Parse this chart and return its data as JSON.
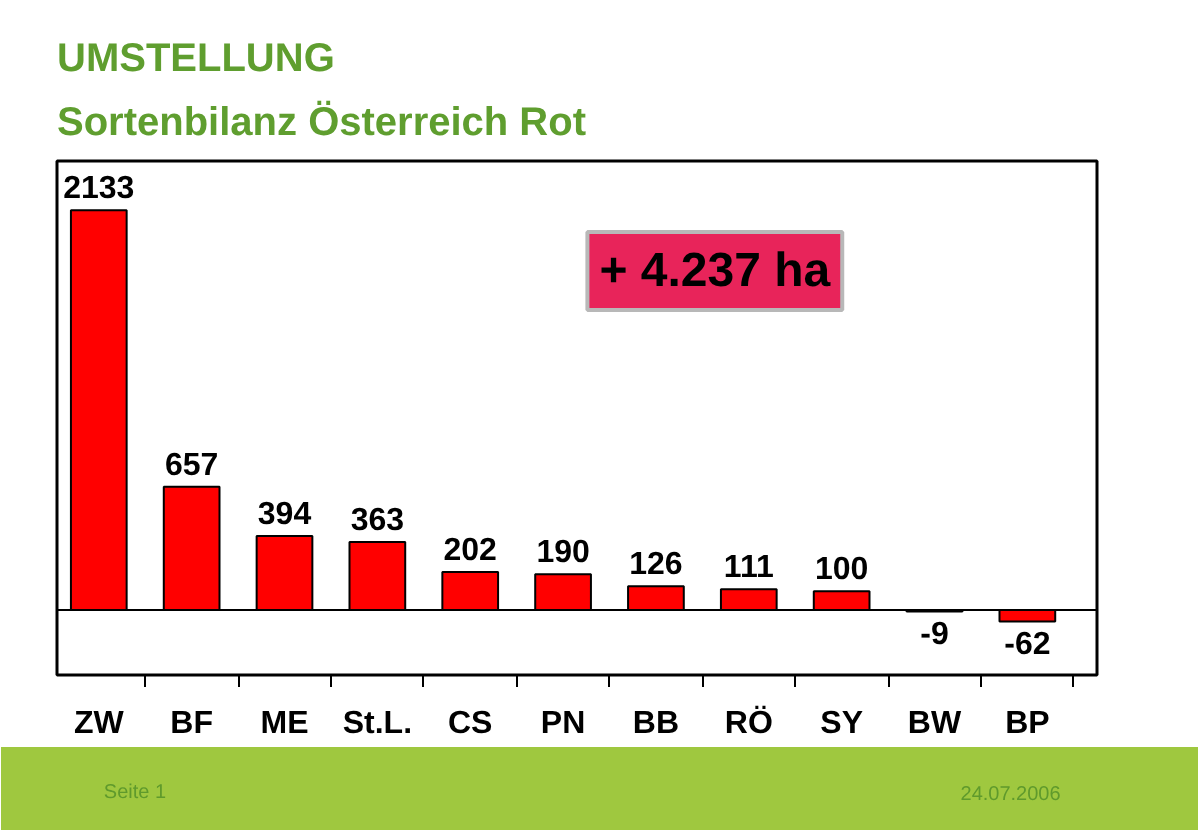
{
  "chart_data": {
    "type": "bar",
    "title": "UMSTELLUNG",
    "subtitle": "Sortenbilanz Österreich Rot",
    "categories": [
      "ZW",
      "BF",
      "ME",
      "St.L.",
      "CS",
      "PN",
      "BB",
      "RÖ",
      "SY",
      "BW",
      "BP"
    ],
    "values": [
      2133,
      657,
      394,
      363,
      202,
      190,
      126,
      111,
      100,
      -9,
      -62
    ],
    "colors": [
      "#ff0000",
      "#ff0000",
      "#ff0000",
      "#ff0000",
      "#ff0000",
      "#ff0000",
      "#ff0000",
      "#ff0000",
      "#ff0000",
      "#000000",
      "#ff0000"
    ],
    "data_labels": true,
    "grid": false,
    "tick_labels": "x",
    "annotations": [
      "+ 4.237 ha",
      "Seite 1",
      "24.07.2006"
    ]
  }
}
